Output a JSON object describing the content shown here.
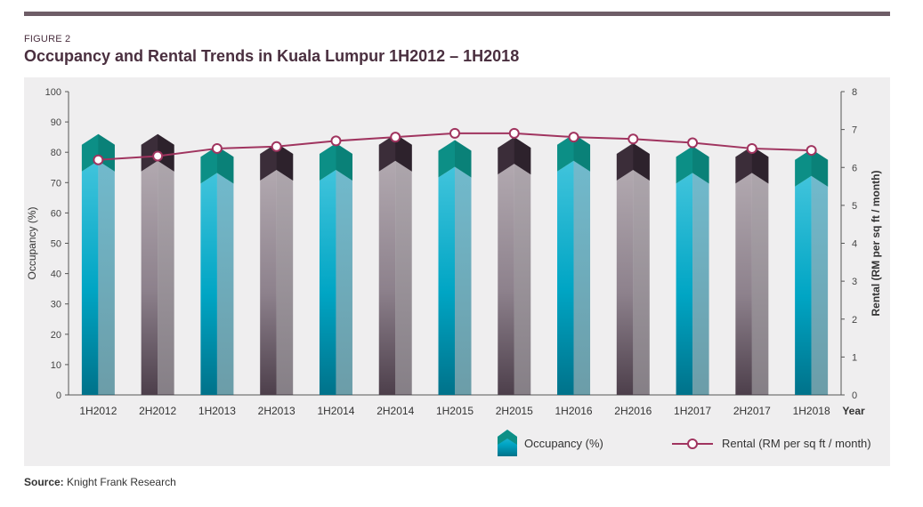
{
  "figure": {
    "label": "FIGURE 2",
    "title": "Occupancy and Rental Trends in Kuala Lumpur 1H2012 – 1H2018"
  },
  "source": {
    "prefix": "Source:",
    "text": " Knight Frank Research"
  },
  "colors": {
    "teal_bar": "#00a8c6",
    "teal_cap": "#0a8e80",
    "grey_bar": "#8b7f8a",
    "grey_cap": "#3a2c38",
    "rental_line": "#a0345f",
    "panel_bg": "#efeeef",
    "title": "#4a2f3f"
  },
  "chart_data": {
    "type": "bar",
    "categories": [
      "1H2012",
      "2H2012",
      "1H2013",
      "2H2013",
      "1H2014",
      "2H2014",
      "1H2015",
      "2H2015",
      "1H2016",
      "2H2016",
      "1H2017",
      "2H2017",
      "1H2018"
    ],
    "xlabel": "Year",
    "ylabel": "Occupancy (%)",
    "y2label": "Rental (RM per sq ft / month)",
    "ylim": [
      0,
      100
    ],
    "y2lim": [
      0,
      8
    ],
    "yticks": [
      0,
      10,
      20,
      30,
      40,
      50,
      60,
      70,
      80,
      90,
      100
    ],
    "y2ticks": [
      0,
      1,
      2,
      3,
      4,
      5,
      6,
      7,
      8
    ],
    "series": [
      {
        "name": "Occupancy (%)",
        "type": "bar",
        "axis": "left",
        "values": [
          86,
          86,
          82,
          83,
          83,
          86,
          84,
          85,
          86,
          83,
          82,
          82,
          81
        ]
      },
      {
        "name": "Rental (RM per sq ft / month)",
        "type": "line",
        "axis": "right",
        "values": [
          6.2,
          6.3,
          6.5,
          6.55,
          6.7,
          6.8,
          6.9,
          6.9,
          6.8,
          6.75,
          6.65,
          6.5,
          6.45
        ]
      }
    ],
    "legend_position": "bottom",
    "grid": false
  }
}
